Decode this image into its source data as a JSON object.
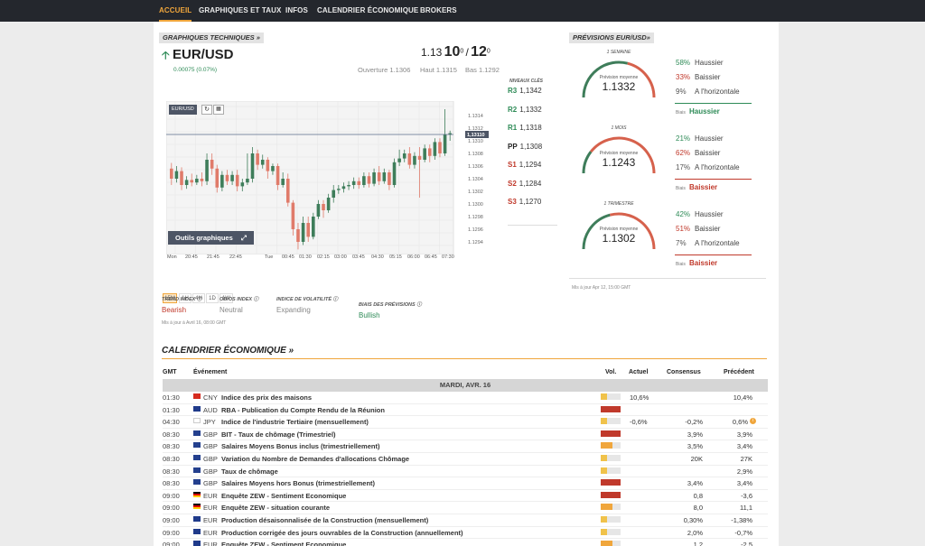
{
  "nav": {
    "items": [
      "ACCUEIL",
      "GRAPHIQUES ET TAUX",
      "INFOS",
      "CALENDRIER ÉCONOMIQUE",
      "BROKERS"
    ],
    "active": "ACCUEIL"
  },
  "tech": {
    "tag": "GRAPHIQUES TECHNIQUES »",
    "pair": "EUR/USD",
    "change": "0.00075 (0.07%)",
    "bid_prefix": "1.13",
    "bid_big": "10",
    "bid_sup": "0",
    "sep": "/",
    "ask_big": "12",
    "ask_sup": "0",
    "ouverture": "Ouverture 1.1306",
    "haut": "Haut 1.1315",
    "bas": "Bas 1.1292",
    "niveaux_title": "NIVEAUX CLÉS",
    "levels": [
      {
        "label": "R3",
        "value": "1,1342",
        "kind": "r"
      },
      {
        "label": "R2",
        "value": "1,1332",
        "kind": "r"
      },
      {
        "label": "R1",
        "value": "1,1318",
        "kind": "r"
      },
      {
        "label": "PP",
        "value": "1,1308",
        "kind": "pp"
      },
      {
        "label": "S1",
        "value": "1,1294",
        "kind": "s"
      },
      {
        "label": "S2",
        "value": "1,1284",
        "kind": "s"
      },
      {
        "label": "S3",
        "value": "1,1270",
        "kind": "s"
      }
    ],
    "chart_label": "EUR/USD",
    "outils": "Outils graphiques",
    "price_marker": "1,13110",
    "timeframes": [
      "15M",
      "1H",
      "4H",
      "1D",
      "1W"
    ],
    "active_tf": "15M",
    "indicators": [
      {
        "title": "TREND INDEX",
        "value": "Bearish",
        "color": "red"
      },
      {
        "title": "OB/OS INDEX",
        "value": "Neutral",
        "color": "gray"
      },
      {
        "title": "INDICE DE VOLATILITÉ",
        "value": "Expanding",
        "color": "gray"
      }
    ],
    "biais_title": "BIAIS DES PRÉVISIONS",
    "biais_value": "Bullish",
    "updated": "Mis à jour à Avril 16, 08:00 GMT"
  },
  "chart_data": {
    "type": "candlestick",
    "y_ticks": [
      "1.1314",
      "1.1312",
      "1.1310",
      "1.1308",
      "1.1306",
      "1.1304",
      "1.1302",
      "1.1300",
      "1.1298",
      "1.1296",
      "1.1294"
    ],
    "x_ticks": [
      "Mon",
      "20:45",
      "21:45",
      "22:45",
      "Tue",
      "00:45",
      "01:30",
      "02:15",
      "03:00",
      "03:45",
      "04:30",
      "05:15",
      "06:00",
      "06:45",
      "07:30"
    ],
    "ylim": [
      1.1292,
      1.1316
    ],
    "candles": [
      {
        "o": 1.13056,
        "c": 1.1304,
        "h": 1.13065,
        "l": 1.1303
      },
      {
        "o": 1.1304,
        "c": 1.13052,
        "h": 1.1306,
        "l": 1.13034
      },
      {
        "o": 1.13052,
        "c": 1.1303,
        "h": 1.13058,
        "l": 1.13022
      },
      {
        "o": 1.1303,
        "c": 1.13038,
        "h": 1.13044,
        "l": 1.13024
      },
      {
        "o": 1.13038,
        "c": 1.13034,
        "h": 1.13048,
        "l": 1.13028
      },
      {
        "o": 1.13034,
        "c": 1.1304,
        "h": 1.13046,
        "l": 1.1303
      },
      {
        "o": 1.1304,
        "c": 1.13036,
        "h": 1.1305,
        "l": 1.13028
      },
      {
        "o": 1.13036,
        "c": 1.1307,
        "h": 1.1308,
        "l": 1.1303
      },
      {
        "o": 1.1307,
        "c": 1.13056,
        "h": 1.1308,
        "l": 1.13046
      },
      {
        "o": 1.13056,
        "c": 1.13026,
        "h": 1.13062,
        "l": 1.13018
      },
      {
        "o": 1.13026,
        "c": 1.13046,
        "h": 1.13052,
        "l": 1.1302
      },
      {
        "o": 1.13046,
        "c": 1.13036,
        "h": 1.13054,
        "l": 1.1303
      },
      {
        "o": 1.13036,
        "c": 1.13046,
        "h": 1.13052,
        "l": 1.1303
      },
      {
        "o": 1.13046,
        "c": 1.13028,
        "h": 1.13054,
        "l": 1.1302
      },
      {
        "o": 1.13028,
        "c": 1.13034,
        "h": 1.1304,
        "l": 1.1302
      },
      {
        "o": 1.13034,
        "c": 1.1304,
        "h": 1.1308,
        "l": 1.1303
      },
      {
        "o": 1.1304,
        "c": 1.1308,
        "h": 1.1309,
        "l": 1.13034
      },
      {
        "o": 1.1308,
        "c": 1.13062,
        "h": 1.13086,
        "l": 1.13054
      },
      {
        "o": 1.13062,
        "c": 1.1307,
        "h": 1.13078,
        "l": 1.13056
      },
      {
        "o": 1.1307,
        "c": 1.13052,
        "h": 1.13074,
        "l": 1.1304
      },
      {
        "o": 1.13052,
        "c": 1.1306,
        "h": 1.13064,
        "l": 1.13046
      },
      {
        "o": 1.1306,
        "c": 1.1303,
        "h": 1.13064,
        "l": 1.13022
      },
      {
        "o": 1.1303,
        "c": 1.1304,
        "h": 1.1305,
        "l": 1.13026
      },
      {
        "o": 1.1304,
        "c": 1.13002,
        "h": 1.13048,
        "l": 1.12996
      },
      {
        "o": 1.13002,
        "c": 1.1296,
        "h": 1.13006,
        "l": 1.1295
      },
      {
        "o": 1.1296,
        "c": 1.1294,
        "h": 1.1297,
        "l": 1.12928
      },
      {
        "o": 1.1294,
        "c": 1.1297,
        "h": 1.1298,
        "l": 1.12935
      },
      {
        "o": 1.1297,
        "c": 1.12948,
        "h": 1.1298,
        "l": 1.1294
      },
      {
        "o": 1.12948,
        "c": 1.1298,
        "h": 1.12986,
        "l": 1.12944
      },
      {
        "o": 1.1298,
        "c": 1.13,
        "h": 1.13006,
        "l": 1.12976
      },
      {
        "o": 1.13,
        "c": 1.1299,
        "h": 1.13006,
        "l": 1.12978
      },
      {
        "o": 1.1299,
        "c": 1.1301,
        "h": 1.13016,
        "l": 1.12986
      },
      {
        "o": 1.1301,
        "c": 1.13022,
        "h": 1.1303,
        "l": 1.13002
      },
      {
        "o": 1.13022,
        "c": 1.13024,
        "h": 1.1303,
        "l": 1.13016
      },
      {
        "o": 1.13024,
        "c": 1.13028,
        "h": 1.13034,
        "l": 1.13018
      },
      {
        "o": 1.13028,
        "c": 1.1303,
        "h": 1.13036,
        "l": 1.13022
      },
      {
        "o": 1.1303,
        "c": 1.13036,
        "h": 1.13042,
        "l": 1.13024
      },
      {
        "o": 1.13036,
        "c": 1.1303,
        "h": 1.13042,
        "l": 1.13024
      },
      {
        "o": 1.1303,
        "c": 1.13044,
        "h": 1.1305,
        "l": 1.13026
      },
      {
        "o": 1.13044,
        "c": 1.13032,
        "h": 1.1305,
        "l": 1.13026
      },
      {
        "o": 1.13032,
        "c": 1.1305,
        "h": 1.13056,
        "l": 1.13028
      },
      {
        "o": 1.1305,
        "c": 1.13036,
        "h": 1.1306,
        "l": 1.1303
      },
      {
        "o": 1.13036,
        "c": 1.1305,
        "h": 1.13056,
        "l": 1.13032
      },
      {
        "o": 1.1305,
        "c": 1.1303,
        "h": 1.13054,
        "l": 1.13022
      },
      {
        "o": 1.1303,
        "c": 1.13066,
        "h": 1.13072,
        "l": 1.13026
      },
      {
        "o": 1.13066,
        "c": 1.13072,
        "h": 1.13086,
        "l": 1.1306
      },
      {
        "o": 1.13072,
        "c": 1.1308,
        "h": 1.13086,
        "l": 1.13066
      },
      {
        "o": 1.1308,
        "c": 1.13062,
        "h": 1.1309,
        "l": 1.13056
      },
      {
        "o": 1.13062,
        "c": 1.13076,
        "h": 1.13082,
        "l": 1.13056
      },
      {
        "o": 1.13076,
        "c": 1.1307,
        "h": 1.1309,
        "l": 1.1301
      },
      {
        "o": 1.1307,
        "c": 1.13088,
        "h": 1.13094,
        "l": 1.13066
      },
      {
        "o": 1.13088,
        "c": 1.13076,
        "h": 1.13094,
        "l": 1.13066
      },
      {
        "o": 1.13076,
        "c": 1.13098,
        "h": 1.13104,
        "l": 1.1307
      },
      {
        "o": 1.13098,
        "c": 1.1308,
        "h": 1.13104,
        "l": 1.13074
      },
      {
        "o": 1.1308,
        "c": 1.1311,
        "h": 1.1315,
        "l": 1.13076
      },
      {
        "o": 1.1311,
        "c": 1.13112,
        "h": 1.13116,
        "l": 1.131
      }
    ]
  },
  "forecast": {
    "tag": "PRÉVISIONS EUR/USD»",
    "prevision_label": "Prévision moyenne",
    "biais_label": "Biais",
    "periods": [
      {
        "name": "1 SEMAINE",
        "value": "1.1332",
        "rows": [
          {
            "pct": "58%",
            "label": "Haussier",
            "color": "green"
          },
          {
            "pct": "33%",
            "label": "Baissier",
            "color": "red"
          },
          {
            "pct": "9%",
            "label": "A l'horizontale",
            "color": "gray"
          }
        ],
        "bias": "Haussier",
        "bias_color": "green",
        "gauge_green": 0.58
      },
      {
        "name": "1 MOIS",
        "value": "1.1243",
        "rows": [
          {
            "pct": "21%",
            "label": "Haussier",
            "color": "green"
          },
          {
            "pct": "62%",
            "label": "Baissier",
            "color": "red"
          },
          {
            "pct": "17%",
            "label": "A l'horizontale",
            "color": "gray"
          }
        ],
        "bias": "Baissier",
        "bias_color": "red",
        "gauge_green": 0.21
      },
      {
        "name": "1 TRIMESTRE",
        "value": "1.1302",
        "rows": [
          {
            "pct": "42%",
            "label": "Haussier",
            "color": "green"
          },
          {
            "pct": "51%",
            "label": "Baissier",
            "color": "red"
          },
          {
            "pct": "7%",
            "label": "A l'horizontale",
            "color": "gray"
          }
        ],
        "bias": "Baissier",
        "bias_color": "red",
        "gauge_green": 0.42
      }
    ],
    "updated": "Mis à jour Apr 12, 15:00 GMT"
  },
  "calendar": {
    "title": "CALENDRIER ÉCONOMIQUE »",
    "headers": {
      "gmt": "GMT",
      "event": "Événement",
      "vol": "Vol.",
      "actual": "Actuel",
      "consensus": "Consensus",
      "previous": "Précédent"
    },
    "day": "MARDI, AVR. 16",
    "rows": [
      {
        "time": "01:30",
        "flag": "cn",
        "ccy": "CNY",
        "event": "Indice des prix des maisons",
        "vol": "low",
        "actual": "10,6%",
        "consensus": "",
        "previous": "10,4%",
        "info": false
      },
      {
        "time": "01:30",
        "flag": "au",
        "ccy": "AUD",
        "event": "RBA - Publication du Compte Rendu de la Réunion",
        "vol": "high",
        "actual": "",
        "consensus": "",
        "previous": "",
        "info": false
      },
      {
        "time": "04:30",
        "flag": "jp",
        "ccy": "JPY",
        "event": "Indice de l'industrie Tertiaire (mensuellement)",
        "vol": "low",
        "actual": "-0,6%",
        "consensus": "-0,2%",
        "previous": "0,6%",
        "info": true
      },
      {
        "time": "08:30",
        "flag": "gb",
        "ccy": "GBP",
        "event": "BIT - Taux de chômage (Trimestriel)",
        "vol": "high",
        "actual": "",
        "consensus": "3,9%",
        "previous": "3,9%",
        "info": false
      },
      {
        "time": "08:30",
        "flag": "gb",
        "ccy": "GBP",
        "event": "Salaires Moyens Bonus inclus (trimestriellement)",
        "vol": "med",
        "actual": "",
        "consensus": "3,5%",
        "previous": "3,4%",
        "info": false
      },
      {
        "time": "08:30",
        "flag": "gb",
        "ccy": "GBP",
        "event": "Variation du Nombre de Demandes d'allocations Chômage",
        "vol": "low",
        "actual": "",
        "consensus": "20K",
        "previous": "27K",
        "info": false
      },
      {
        "time": "08:30",
        "flag": "gb",
        "ccy": "GBP",
        "event": "Taux de chômage",
        "vol": "low",
        "actual": "",
        "consensus": "",
        "previous": "2,9%",
        "info": false
      },
      {
        "time": "08:30",
        "flag": "gb",
        "ccy": "GBP",
        "event": "Salaires Moyens hors Bonus (trimestriellement)",
        "vol": "high",
        "actual": "",
        "consensus": "3,4%",
        "previous": "3,4%",
        "info": false
      },
      {
        "time": "09:00",
        "flag": "de",
        "ccy": "EUR",
        "event": "Enquête ZEW - Sentiment Economique",
        "vol": "high",
        "actual": "",
        "consensus": "0,8",
        "previous": "-3,6",
        "info": false
      },
      {
        "time": "09:00",
        "flag": "de",
        "ccy": "EUR",
        "event": "Enquête ZEW - situation courante",
        "vol": "med",
        "actual": "",
        "consensus": "8,0",
        "previous": "11,1",
        "info": false
      },
      {
        "time": "09:00",
        "flag": "eu",
        "ccy": "EUR",
        "event": "Production désaisonnalisée de la Construction (mensuellement)",
        "vol": "low",
        "actual": "",
        "consensus": "0,30%",
        "previous": "-1,38%",
        "info": false
      },
      {
        "time": "09:00",
        "flag": "eu",
        "ccy": "EUR",
        "event": "Production corrigée des jours ouvrables de la Construction (annuellement)",
        "vol": "low",
        "actual": "",
        "consensus": "2,0%",
        "previous": "-0,7%",
        "info": false
      },
      {
        "time": "09:00",
        "flag": "eu",
        "ccy": "EUR",
        "event": "Enquête ZEW - Sentiment Economique",
        "vol": "med",
        "actual": "",
        "consensus": "1,2",
        "previous": "-2,5",
        "info": false
      }
    ]
  },
  "colors": {
    "green": "#2e8b57",
    "red": "#c0392b",
    "accent": "#f0a63c",
    "nav_bg": "#24272d"
  }
}
